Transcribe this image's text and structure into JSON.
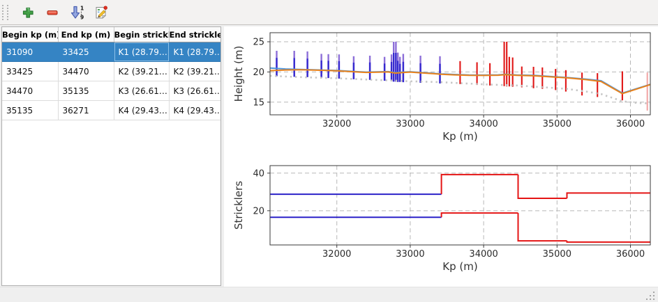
{
  "toolbar": {
    "buttons": [
      {
        "name": "add",
        "icon": "plus-icon"
      },
      {
        "name": "remove",
        "icon": "minus-icon"
      },
      {
        "name": "sort",
        "icon": "sort-numeric-icon"
      },
      {
        "name": "edit",
        "icon": "edit-pencil-icon"
      }
    ]
  },
  "table": {
    "headers": [
      "Begin kp (m)",
      "End kp (m)",
      "Begin strickler",
      "End strickler"
    ],
    "rows": [
      [
        "31090",
        "33425",
        "K1 (28.79…",
        "K1 (28.79…"
      ],
      [
        "33425",
        "34470",
        "K2 (39.21…",
        "K2 (39.21…"
      ],
      [
        "34470",
        "35135",
        "K3 (26.61…",
        "K3 (26.61…"
      ],
      [
        "35135",
        "36271",
        "K4 (29.43…",
        "K4 (29.43…"
      ]
    ],
    "selected_row": 0,
    "selection_color": "#3584c4"
  },
  "chart_data": [
    {
      "type": "line",
      "title": "",
      "xlabel": "Kp (m)",
      "ylabel": "Height (m)",
      "xlim": [
        31090,
        36271
      ],
      "ylim": [
        12.9,
        26.5
      ],
      "xticks": [
        32000,
        33000,
        34000,
        35000,
        36000
      ],
      "yticks": [
        15,
        20,
        25
      ],
      "grid": true,
      "series": [
        {
          "name": "water-level-line",
          "color": "#4f94d9",
          "width": 2,
          "style": "solid",
          "points": [
            [
              31090,
              20.65
            ],
            [
              31300,
              20.5
            ],
            [
              31500,
              20.42
            ],
            [
              31790,
              20.32
            ],
            [
              32000,
              20.25
            ],
            [
              32200,
              20.1
            ],
            [
              32400,
              19.98
            ],
            [
              32550,
              20.02
            ],
            [
              32700,
              20.06
            ],
            [
              32800,
              19.88
            ],
            [
              32900,
              19.98
            ],
            [
              33000,
              20.04
            ],
            [
              33150,
              19.9
            ],
            [
              33300,
              19.78
            ],
            [
              33425,
              19.68
            ],
            [
              33600,
              19.58
            ],
            [
              33800,
              19.5
            ],
            [
              34000,
              19.48
            ],
            [
              34200,
              19.52
            ],
            [
              34300,
              19.62
            ],
            [
              34450,
              19.5
            ],
            [
              34700,
              19.42
            ],
            [
              35000,
              19.18
            ],
            [
              35135,
              19.08
            ],
            [
              35400,
              18.8
            ],
            [
              35600,
              18.55
            ],
            [
              35890,
              16.5
            ],
            [
              36271,
              17.95
            ]
          ]
        },
        {
          "name": "bed-profile-line",
          "color": "#e8821c",
          "width": 2,
          "style": "solid",
          "points": [
            [
              31090,
              20.22
            ],
            [
              31300,
              20.32
            ],
            [
              31500,
              20.36
            ],
            [
              31790,
              20.28
            ],
            [
              32000,
              20.2
            ],
            [
              32200,
              20.05
            ],
            [
              32400,
              19.92
            ],
            [
              32550,
              19.96
            ],
            [
              32700,
              20.0
            ],
            [
              32800,
              19.8
            ],
            [
              32900,
              19.9
            ],
            [
              33000,
              19.98
            ],
            [
              33150,
              19.84
            ],
            [
              33300,
              19.72
            ],
            [
              33425,
              19.62
            ],
            [
              33600,
              19.52
            ],
            [
              33800,
              19.44
            ],
            [
              34000,
              19.42
            ],
            [
              34200,
              19.46
            ],
            [
              34300,
              19.56
            ],
            [
              34450,
              19.44
            ],
            [
              34700,
              19.36
            ],
            [
              35000,
              19.12
            ],
            [
              35135,
              19.02
            ],
            [
              35400,
              18.72
            ],
            [
              35600,
              18.42
            ],
            [
              35890,
              16.4
            ],
            [
              36271,
              17.9
            ]
          ]
        },
        {
          "name": "lower-bed-dotted-line",
          "color": "#c6c6c6",
          "width": 2.6,
          "style": "dotted",
          "points": [
            [
              31090,
              19.35
            ],
            [
              31500,
              19.15
            ],
            [
              32000,
              18.95
            ],
            [
              32500,
              18.7
            ],
            [
              33000,
              18.45
            ],
            [
              33425,
              18.3
            ],
            [
              34000,
              17.95
            ],
            [
              34300,
              17.82
            ],
            [
              34470,
              17.75
            ],
            [
              35000,
              17.32
            ],
            [
              35135,
              17.2
            ],
            [
              35400,
              16.75
            ],
            [
              35600,
              16.35
            ],
            [
              35890,
              15.15
            ],
            [
              36100,
              14.85
            ],
            [
              36271,
              14.8
            ]
          ]
        }
      ],
      "vbars": [
        {
          "name": "cross-section-bars-upstream",
          "color": "#3629cf",
          "cap_color": "#8d6fd8",
          "items": [
            [
              31180,
              19.3,
              23.5
            ],
            [
              31420,
              19.2,
              23.5
            ],
            [
              31600,
              19.15,
              23.4
            ],
            [
              31790,
              19.05,
              23.0
            ],
            [
              31885,
              19.0,
              22.95
            ],
            [
              32030,
              18.9,
              22.9
            ],
            [
              32230,
              18.8,
              22.6
            ],
            [
              32450,
              18.7,
              22.7
            ],
            [
              32650,
              18.55,
              22.5
            ],
            [
              32745,
              18.45,
              22.9
            ],
            [
              32775,
              18.4,
              25.0
            ],
            [
              32805,
              18.4,
              25.0
            ],
            [
              32832,
              18.35,
              23.2
            ],
            [
              32860,
              18.35,
              22.5
            ],
            [
              32905,
              18.3,
              23.0
            ],
            [
              33140,
              18.2,
              22.7
            ],
            [
              33405,
              18.1,
              22.6
            ]
          ]
        },
        {
          "name": "cross-section-bars-downstream",
          "color": "#e01616",
          "cap_color": null,
          "items": [
            [
              33680,
              18.0,
              21.8
            ],
            [
              33910,
              17.85,
              21.6
            ],
            [
              34085,
              17.75,
              21.45
            ],
            [
              34280,
              17.65,
              25.0
            ],
            [
              34315,
              17.6,
              25.0
            ],
            [
              34350,
              17.6,
              22.5
            ],
            [
              34395,
              17.55,
              22.4
            ],
            [
              34520,
              17.45,
              20.9
            ],
            [
              34680,
              17.3,
              20.85
            ],
            [
              34800,
              17.2,
              20.75
            ],
            [
              34980,
              17.0,
              20.5
            ],
            [
              35120,
              16.75,
              20.3
            ],
            [
              35340,
              16.1,
              19.9
            ],
            [
              35550,
              15.85,
              19.8
            ],
            [
              35890,
              15.3,
              20.1
            ]
          ]
        },
        {
          "name": "cross-section-bar-last-pale",
          "color": "#f2a6a6",
          "cap_color": null,
          "items": [
            [
              36230,
              13.6,
              19.9
            ]
          ]
        }
      ]
    },
    {
      "type": "step",
      "title": "",
      "xlabel": "Kp (m)",
      "ylabel": "Stricklers",
      "xlim": [
        31090,
        36271
      ],
      "ylim": [
        1.8,
        44
      ],
      "xticks": [
        32000,
        33000,
        34000,
        35000,
        36000
      ],
      "yticks": [
        20,
        40
      ],
      "grid": true,
      "step_lines": [
        {
          "name": "main-channel-strickler",
          "segments": [
            {
              "x0": 31090,
              "x1": 33425,
              "y": 28.79,
              "color": "#2a20c8"
            },
            {
              "x0": 33425,
              "x1": 34470,
              "y": 39.21,
              "color": "#e41414"
            },
            {
              "x0": 34470,
              "x1": 35135,
              "y": 26.61,
              "color": "#e41414"
            },
            {
              "x0": 35135,
              "x1": 36271,
              "y": 29.43,
              "color": "#e41414"
            }
          ]
        },
        {
          "name": "floodplain-strickler",
          "segments": [
            {
              "x0": 31090,
              "x1": 33425,
              "y": 16.5,
              "color": "#2a20c8"
            },
            {
              "x0": 33425,
              "x1": 34470,
              "y": 18.8,
              "color": "#e41414"
            },
            {
              "x0": 34470,
              "x1": 35135,
              "y": 4.0,
              "color": "#e41414"
            },
            {
              "x0": 35135,
              "x1": 36271,
              "y": 3.3,
              "color": "#e41414"
            }
          ]
        }
      ]
    }
  ]
}
